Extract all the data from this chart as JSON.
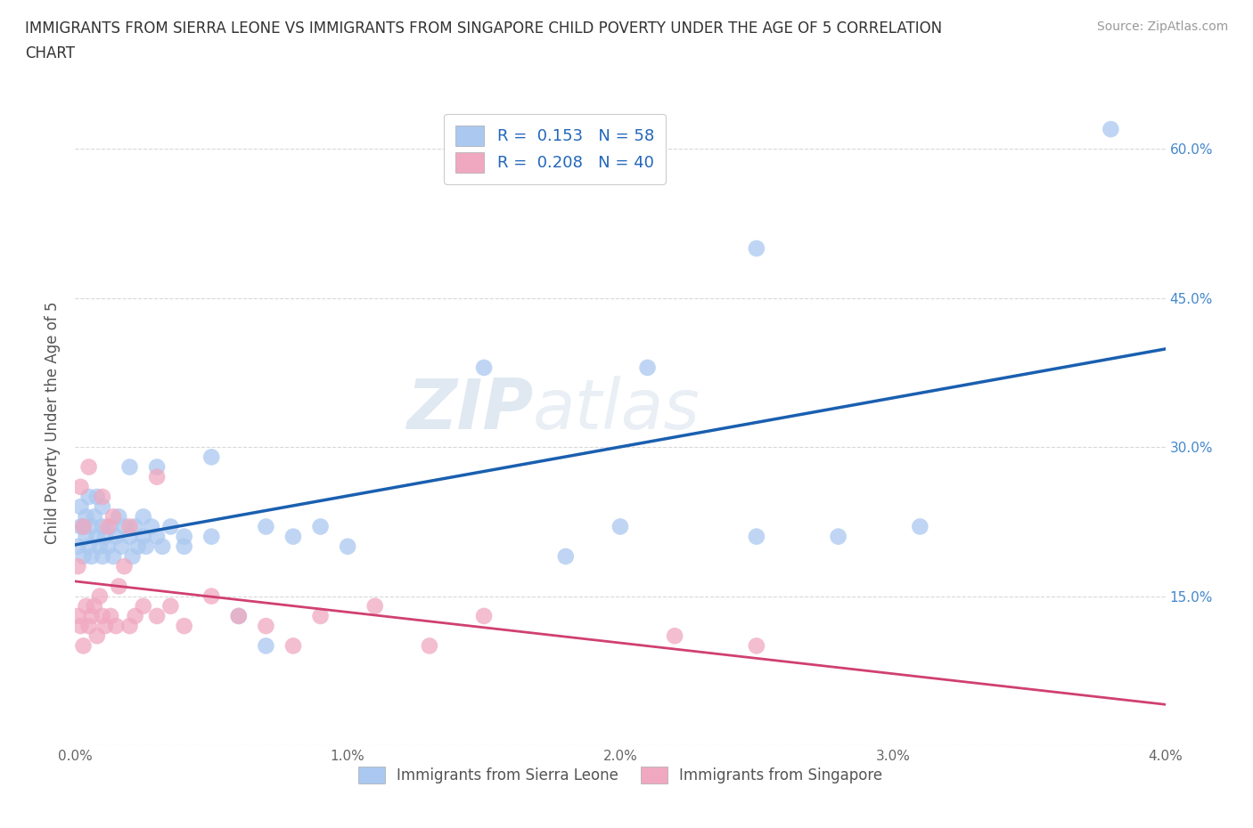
{
  "title_line1": "IMMIGRANTS FROM SIERRA LEONE VS IMMIGRANTS FROM SINGAPORE CHILD POVERTY UNDER THE AGE OF 5 CORRELATION",
  "title_line2": "CHART",
  "source": "Source: ZipAtlas.com",
  "ylabel": "Child Poverty Under the Age of 5",
  "xlim": [
    0.0,
    0.04
  ],
  "ylim": [
    0.0,
    0.65
  ],
  "yticks": [
    0.0,
    0.15,
    0.3,
    0.45,
    0.6
  ],
  "ytick_labels": [
    "",
    "15.0%",
    "30.0%",
    "45.0%",
    "60.0%"
  ],
  "xticks": [
    0.0,
    0.01,
    0.02,
    0.03,
    0.04
  ],
  "xtick_labels": [
    "0.0%",
    "1.0%",
    "2.0%",
    "3.0%",
    "4.0%"
  ],
  "series1_label": "Immigrants from Sierra Leone",
  "series2_label": "Immigrants from Singapore",
  "series1_color": "#aac8f0",
  "series2_color": "#f0a8c0",
  "series1_line_color": "#1a5fb0",
  "series2_line_color": "#d04070",
  "r1": 0.153,
  "n1": 58,
  "r2": 0.208,
  "n2": 40,
  "watermark": "ZIPatlas",
  "background_color": "#ffffff",
  "grid_color": "#d8d8d8",
  "series1_x": [
    0.0001,
    0.0002,
    0.0002,
    0.0003,
    0.0003,
    0.0004,
    0.0004,
    0.0005,
    0.0005,
    0.0006,
    0.0006,
    0.0007,
    0.0008,
    0.0008,
    0.0009,
    0.001,
    0.001,
    0.001,
    0.0011,
    0.0012,
    0.0013,
    0.0014,
    0.0015,
    0.0016,
    0.0017,
    0.0018,
    0.002,
    0.002,
    0.0021,
    0.0022,
    0.0023,
    0.0025,
    0.0025,
    0.0026,
    0.0028,
    0.003,
    0.003,
    0.0032,
    0.0035,
    0.004,
    0.004,
    0.005,
    0.005,
    0.006,
    0.007,
    0.007,
    0.008,
    0.009,
    0.01,
    0.015,
    0.018,
    0.02,
    0.021,
    0.025,
    0.025,
    0.028,
    0.031,
    0.038
  ],
  "series1_y": [
    0.2,
    0.22,
    0.24,
    0.19,
    0.22,
    0.21,
    0.23,
    0.2,
    0.25,
    0.22,
    0.19,
    0.23,
    0.21,
    0.25,
    0.2,
    0.22,
    0.19,
    0.24,
    0.21,
    0.2,
    0.22,
    0.19,
    0.21,
    0.23,
    0.2,
    0.22,
    0.21,
    0.28,
    0.19,
    0.22,
    0.2,
    0.21,
    0.23,
    0.2,
    0.22,
    0.21,
    0.28,
    0.2,
    0.22,
    0.2,
    0.21,
    0.21,
    0.29,
    0.13,
    0.22,
    0.1,
    0.21,
    0.22,
    0.2,
    0.38,
    0.19,
    0.22,
    0.38,
    0.5,
    0.21,
    0.21,
    0.22,
    0.62
  ],
  "series2_x": [
    0.0001,
    0.0001,
    0.0002,
    0.0002,
    0.0003,
    0.0003,
    0.0004,
    0.0005,
    0.0005,
    0.0006,
    0.0007,
    0.0008,
    0.0009,
    0.001,
    0.001,
    0.0011,
    0.0012,
    0.0013,
    0.0014,
    0.0015,
    0.0016,
    0.0018,
    0.002,
    0.002,
    0.0022,
    0.0025,
    0.003,
    0.003,
    0.0035,
    0.004,
    0.005,
    0.006,
    0.007,
    0.008,
    0.009,
    0.011,
    0.013,
    0.015,
    0.022,
    0.025
  ],
  "series2_y": [
    0.13,
    0.18,
    0.12,
    0.26,
    0.1,
    0.22,
    0.14,
    0.12,
    0.28,
    0.13,
    0.14,
    0.11,
    0.15,
    0.13,
    0.25,
    0.12,
    0.22,
    0.13,
    0.23,
    0.12,
    0.16,
    0.18,
    0.12,
    0.22,
    0.13,
    0.14,
    0.13,
    0.27,
    0.14,
    0.12,
    0.15,
    0.13,
    0.12,
    0.1,
    0.13,
    0.14,
    0.1,
    0.13,
    0.11,
    0.1
  ]
}
